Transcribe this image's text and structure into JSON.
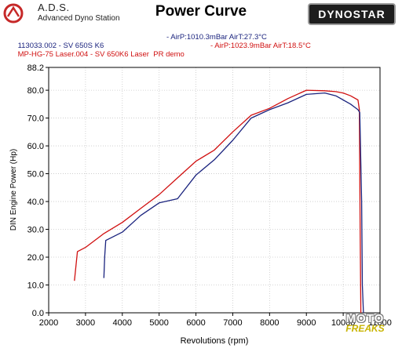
{
  "header": {
    "brand_name": "A.D.S.",
    "brand_subtitle": "Advanced Dyno Station",
    "title": "Power Curve",
    "badge": "DYNOSTAR"
  },
  "runs": [
    {
      "name": "113033.002 - SV 650S K6",
      "conditions": "- AirP:1010.3mBar AirT:27.3°C",
      "color": "#1a237e"
    },
    {
      "name": "MP-HG-75 Laser.004 - SV 650K6 Laser  PR demo",
      "conditions": "- AirP:1023.9mBar AirT:18.5°C",
      "color": "#d01010"
    }
  ],
  "watermark": {
    "top": "MOTO",
    "bottom": "FREAKS"
  },
  "chart_data": {
    "type": "line",
    "xlabel": "Revolutions (rpm)",
    "ylabel": "DIN Engine Power (Hp)",
    "xlim": [
      2000,
      11000
    ],
    "ylim": [
      0,
      88.2
    ],
    "x_ticks": [
      "2000",
      "3000",
      "4000",
      "5000",
      "6000",
      "7000",
      "8000",
      "9000",
      "10000",
      "11000"
    ],
    "y_ticks": [
      "0.0",
      "10.0",
      "20.0",
      "30.0",
      "40.0",
      "50.0",
      "60.0",
      "70.0",
      "80.0",
      "88.2"
    ],
    "y_tick_values": [
      0,
      10,
      20,
      30,
      40,
      50,
      60,
      70,
      80,
      88.2
    ],
    "grid": true,
    "series": [
      {
        "color": "#d01010",
        "x": [
          2700,
          2780,
          3000,
          3200,
          3500,
          4000,
          4500,
          5000,
          5500,
          6000,
          6500,
          7000,
          7500,
          8000,
          8500,
          9000,
          9500,
          9800,
          10000,
          10200,
          10400,
          10440,
          10460,
          10480
        ],
        "y": [
          11.5,
          22.0,
          23.5,
          25.5,
          28.5,
          32.5,
          37.5,
          42.5,
          48.5,
          54.5,
          58.5,
          65.0,
          71.0,
          73.5,
          77.0,
          80.0,
          79.8,
          79.5,
          79.0,
          78.0,
          76.5,
          73.0,
          30.0,
          0.0
        ]
      },
      {
        "color": "#1a237e",
        "x": [
          3500,
          3520,
          3550,
          3700,
          4000,
          4500,
          5000,
          5500,
          6000,
          6500,
          7000,
          7500,
          8000,
          8500,
          9000,
          9500,
          9800,
          10000,
          10200,
          10300,
          10400,
          10450,
          10500,
          10520,
          10550
        ],
        "y": [
          12.5,
          20.0,
          26.0,
          27.0,
          29.0,
          35.0,
          39.5,
          41.0,
          49.5,
          55.0,
          62.0,
          70.0,
          73.0,
          75.5,
          78.5,
          79.0,
          78.0,
          76.5,
          75.0,
          74.0,
          73.0,
          72.0,
          40.0,
          10.0,
          0.0
        ]
      }
    ]
  }
}
